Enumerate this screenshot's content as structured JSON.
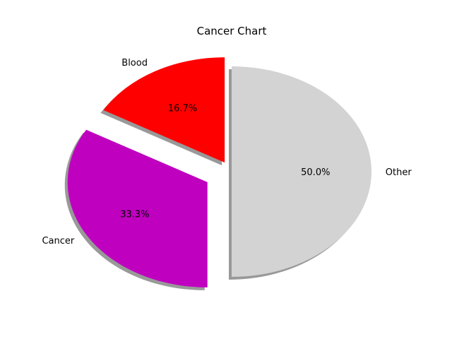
{
  "chart_data": {
    "type": "pie",
    "title": "Cancer Chart",
    "slices": [
      {
        "label": "Blood",
        "value": 16.7,
        "pct_label": "16.7%",
        "color": "#ff0000",
        "explode": 0.1
      },
      {
        "label": "Cancer",
        "value": 33.3,
        "pct_label": "33.3%",
        "color": "#bf00bf",
        "explode": 0.2
      },
      {
        "label": "Other",
        "value": 50.0,
        "pct_label": "50.0%",
        "color": "#d3d3d3",
        "explode": 0.0
      }
    ],
    "shadow": true
  }
}
